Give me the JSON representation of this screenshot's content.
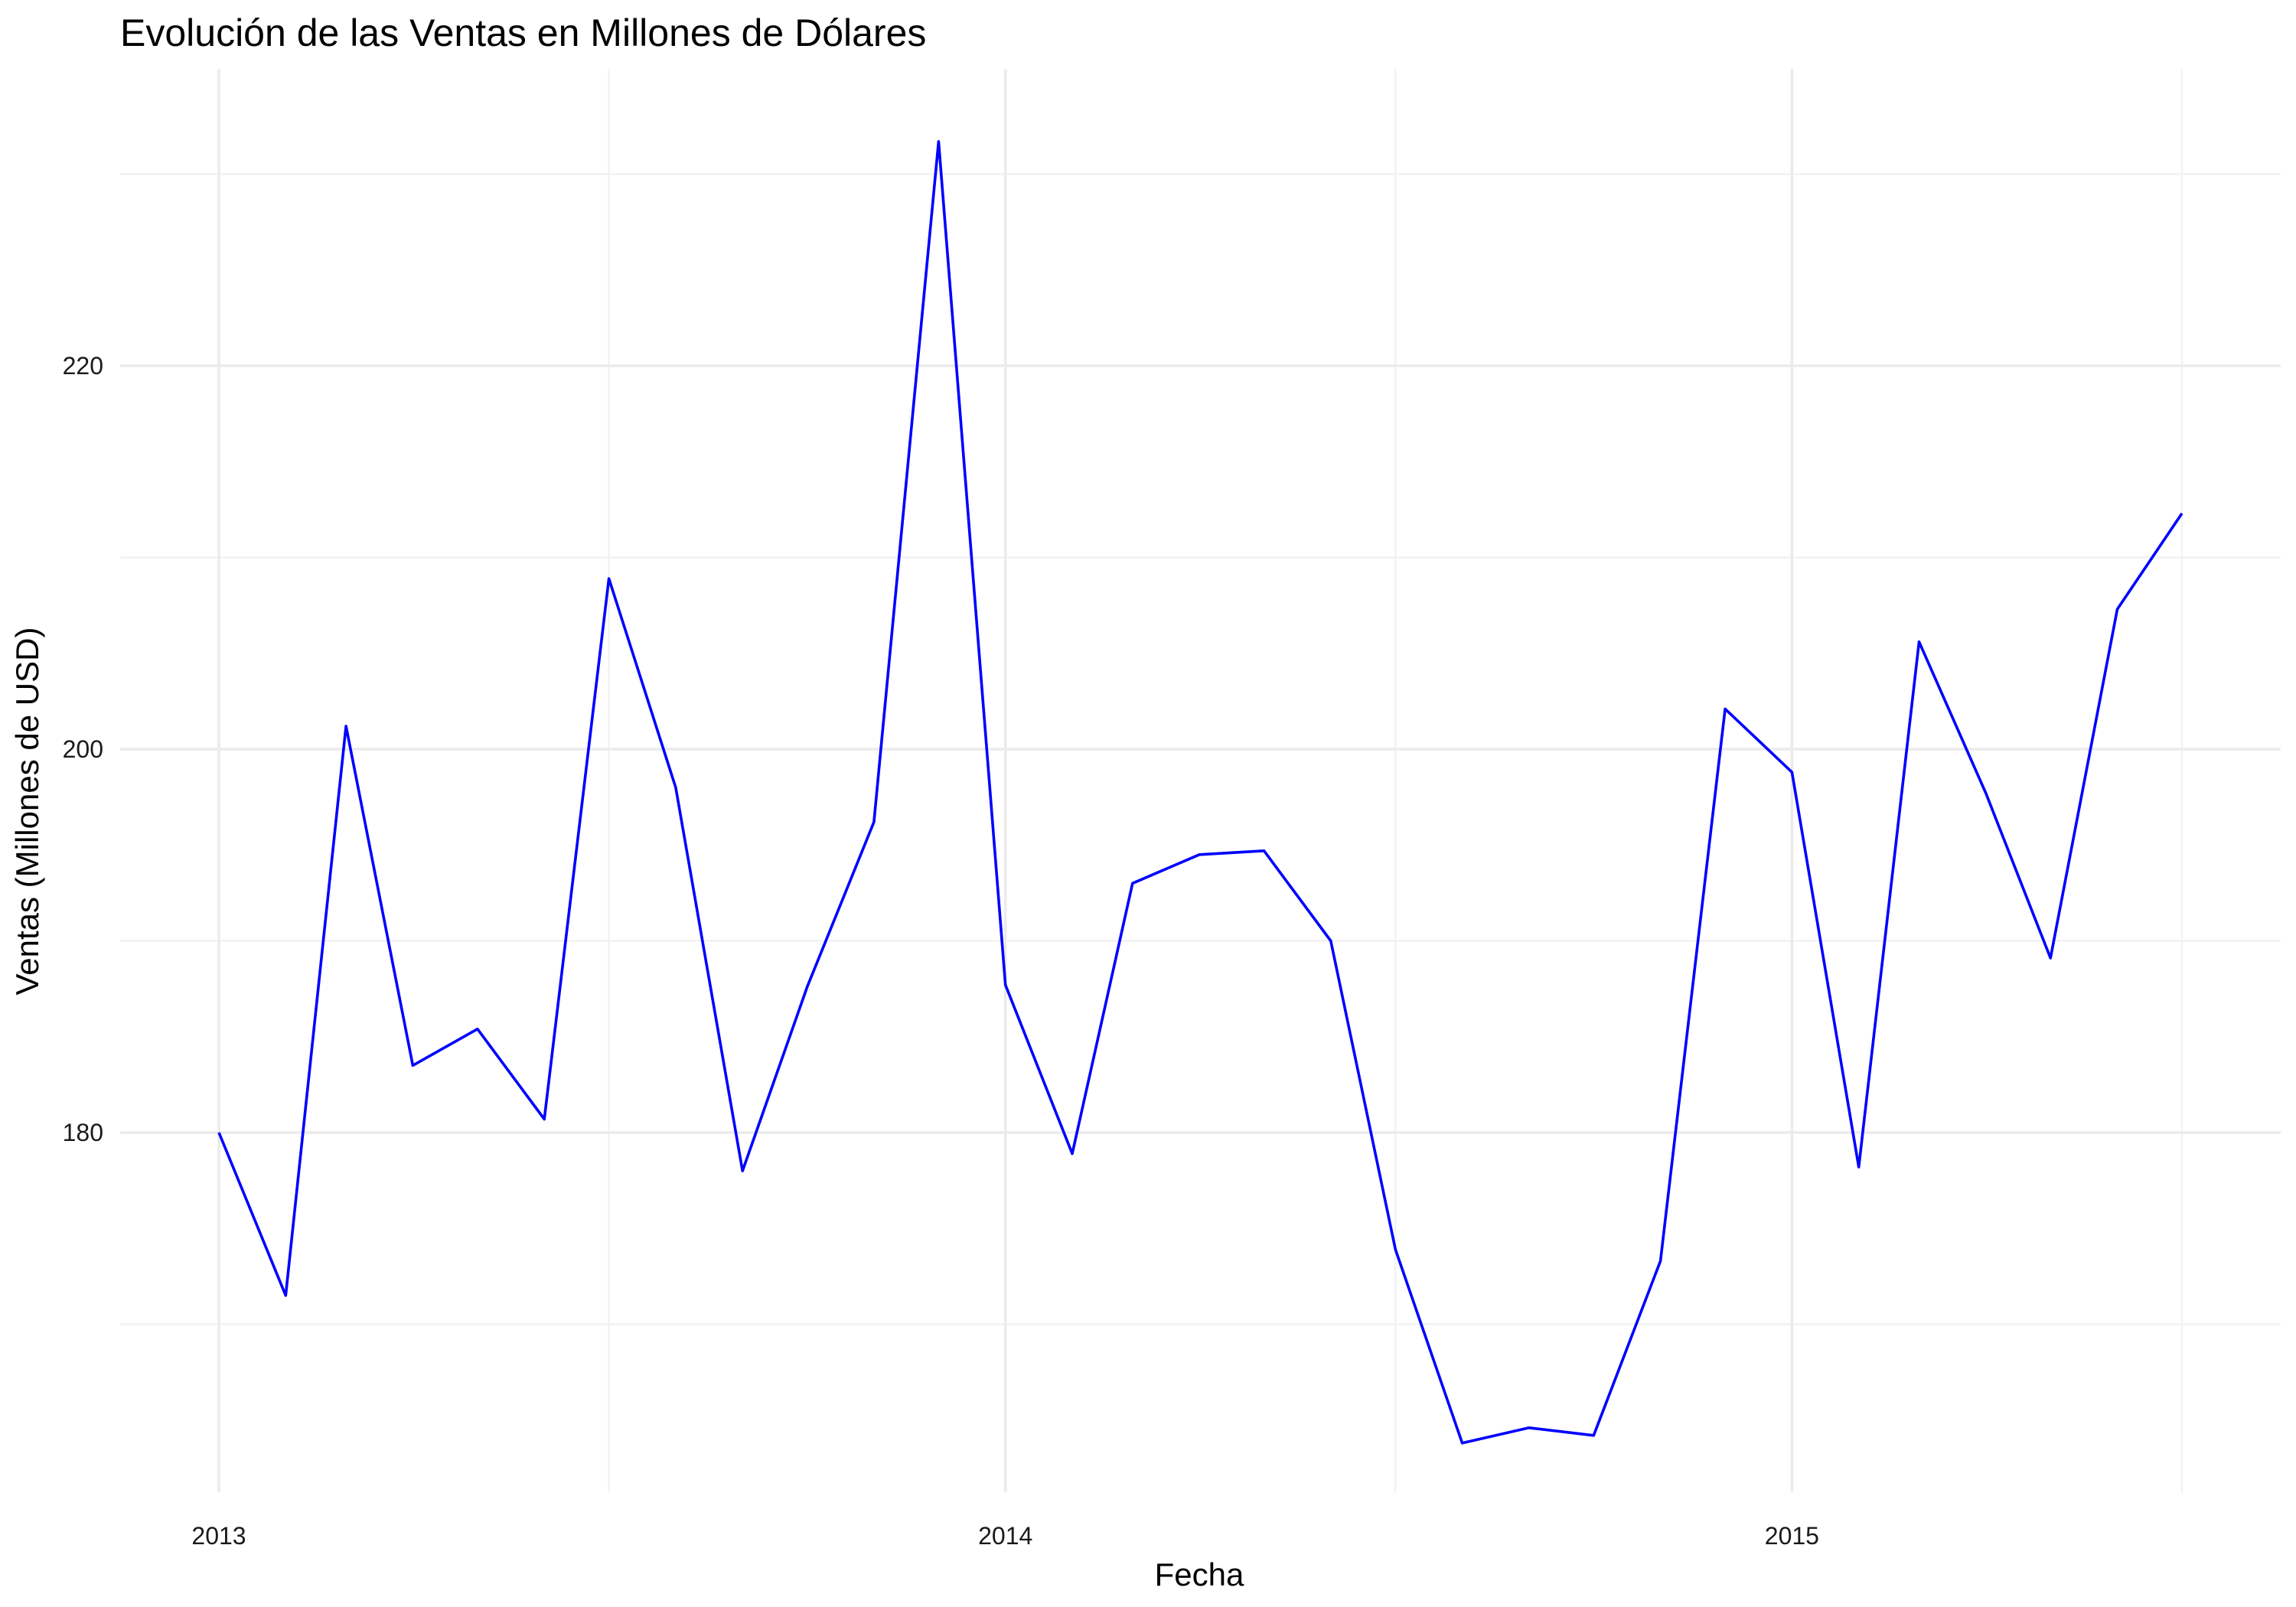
{
  "chart_data": {
    "type": "line",
    "title": "Evolución de las Ventas en Millones de Dólares",
    "xlabel": "Fecha",
    "ylabel": "Ventas (Millones de USD)",
    "x_ticks": [
      {
        "date": "2013-01-01",
        "label": "2013"
      },
      {
        "date": "2014-01-01",
        "label": "2014"
      },
      {
        "date": "2015-01-01",
        "label": "2015"
      }
    ],
    "x_minor_ticks": [
      "2013-07-01",
      "2014-07-01",
      "2015-07-01"
    ],
    "y_ticks": [
      180,
      200,
      220
    ],
    "y_minor_ticks": [
      170,
      190,
      210,
      230
    ],
    "xlim": [
      "2012-11-15",
      "2015-10-15"
    ],
    "ylim": [
      161,
      234
    ],
    "grid": true,
    "series": [
      {
        "color": "#0000ff",
        "points": [
          {
            "x": "2013-01-01",
            "y": 180.0
          },
          {
            "x": "2013-02-01",
            "y": 171.5
          },
          {
            "x": "2013-03-01",
            "y": 201.2
          },
          {
            "x": "2013-04-01",
            "y": 183.5
          },
          {
            "x": "2013-05-01",
            "y": 185.4
          },
          {
            "x": "2013-06-01",
            "y": 180.7
          },
          {
            "x": "2013-07-01",
            "y": 208.9
          },
          {
            "x": "2013-08-01",
            "y": 198.0
          },
          {
            "x": "2013-09-01",
            "y": 178.0
          },
          {
            "x": "2013-10-01",
            "y": 187.6
          },
          {
            "x": "2013-11-01",
            "y": 196.2
          },
          {
            "x": "2013-12-01",
            "y": 231.7
          },
          {
            "x": "2014-01-01",
            "y": 187.7
          },
          {
            "x": "2014-02-01",
            "y": 178.9
          },
          {
            "x": "2014-03-01",
            "y": 193.0
          },
          {
            "x": "2014-04-01",
            "y": 194.5
          },
          {
            "x": "2014-05-01",
            "y": 194.7
          },
          {
            "x": "2014-06-01",
            "y": 190.0
          },
          {
            "x": "2014-07-01",
            "y": 173.9
          },
          {
            "x": "2014-08-01",
            "y": 163.8
          },
          {
            "x": "2014-09-01",
            "y": 164.6
          },
          {
            "x": "2014-10-01",
            "y": 164.2
          },
          {
            "x": "2014-11-01",
            "y": 173.3
          },
          {
            "x": "2014-12-01",
            "y": 202.1
          },
          {
            "x": "2015-01-01",
            "y": 198.8
          },
          {
            "x": "2015-02-01",
            "y": 178.2
          },
          {
            "x": "2015-03-01",
            "y": 205.6
          },
          {
            "x": "2015-04-01",
            "y": 197.7
          },
          {
            "x": "2015-05-01",
            "y": 189.1
          },
          {
            "x": "2015-06-01",
            "y": 207.3
          },
          {
            "x": "2015-07-01",
            "y": 212.3
          }
        ]
      }
    ]
  }
}
